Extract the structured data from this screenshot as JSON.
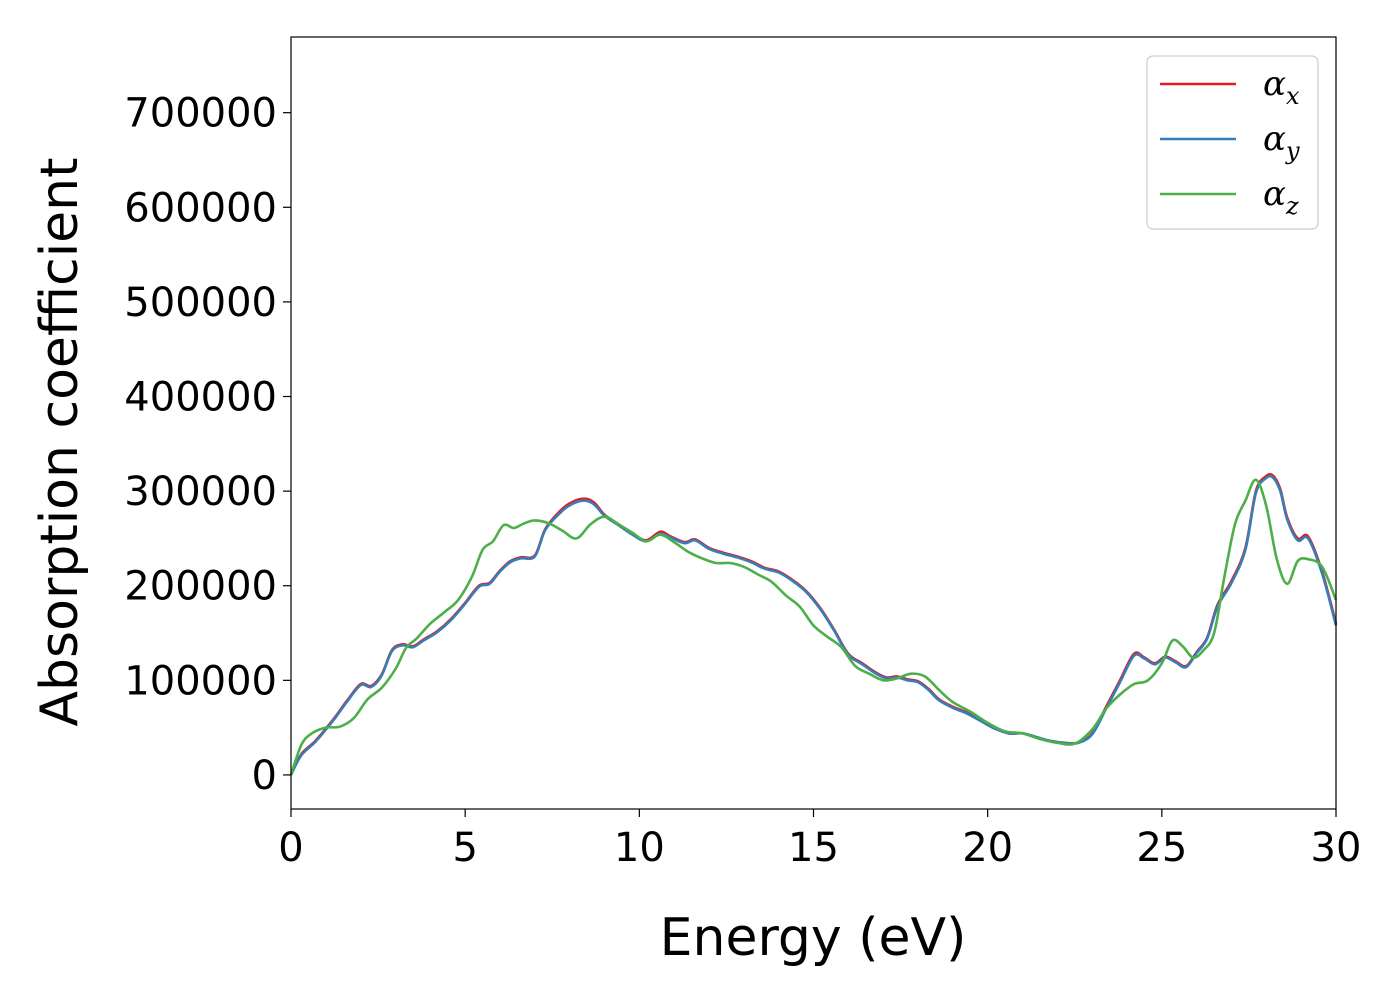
{
  "chart_data": {
    "type": "line",
    "title": "",
    "xlabel": "Energy (eV)",
    "ylabel": "Absorption coefficient",
    "xlim": [
      0,
      30
    ],
    "ylim": [
      -36000,
      780000
    ],
    "xticks": [
      0,
      5,
      10,
      15,
      20,
      25,
      30
    ],
    "yticks": [
      0,
      100000,
      200000,
      300000,
      400000,
      500000,
      600000,
      700000
    ],
    "grid": false,
    "legend_position": "top-right",
    "series": [
      {
        "name": "α_x",
        "legend_base": "α",
        "legend_sub": "x",
        "color": "#e41a1c",
        "x": [
          0,
          0.3,
          0.7,
          1.2,
          1.6,
          2.0,
          2.3,
          2.6,
          2.9,
          3.2,
          3.5,
          3.8,
          4.2,
          4.6,
          5.0,
          5.4,
          5.7,
          6.0,
          6.3,
          6.6,
          7.0,
          7.3,
          7.7,
          8.0,
          8.4,
          8.7,
          9.0,
          9.4,
          9.8,
          10.2,
          10.6,
          10.9,
          11.3,
          11.6,
          12.0,
          12.4,
          12.8,
          13.2,
          13.6,
          14.0,
          14.4,
          14.8,
          15.2,
          15.6,
          16.0,
          16.4,
          16.8,
          17.1,
          17.4,
          17.7,
          18.0,
          18.3,
          18.6,
          19.0,
          19.4,
          19.8,
          20.2,
          20.6,
          21.0,
          21.4,
          21.8,
          22.2,
          22.6,
          23.0,
          23.4,
          23.8,
          24.2,
          24.5,
          24.8,
          25.1,
          25.4,
          25.7,
          26.0,
          26.3,
          26.6,
          27.0,
          27.4,
          27.7,
          28.0,
          28.2,
          28.4,
          28.6,
          28.9,
          29.2,
          29.6,
          30.0
        ],
        "values": [
          0,
          22000,
          36000,
          58000,
          78000,
          96000,
          94000,
          106000,
          132000,
          138000,
          136000,
          143000,
          152000,
          165000,
          182000,
          200000,
          203000,
          216000,
          226000,
          230000,
          232000,
          260000,
          278000,
          287000,
          292000,
          288000,
          275000,
          265000,
          255000,
          248000,
          257000,
          252000,
          246000,
          249000,
          240000,
          235000,
          231000,
          226000,
          219000,
          215000,
          206000,
          194000,
          176000,
          153000,
          128000,
          118000,
          108000,
          103000,
          104000,
          101000,
          99000,
          91000,
          80000,
          72000,
          66000,
          58000,
          50000,
          44000,
          44000,
          40000,
          36000,
          34000,
          34000,
          44000,
          72000,
          100000,
          128000,
          124000,
          118000,
          125000,
          120000,
          115000,
          130000,
          145000,
          180000,
          205000,
          240000,
          300000,
          316000,
          316000,
          302000,
          272000,
          250000,
          252000,
          215000,
          160000
        ]
      },
      {
        "name": "α_y",
        "legend_base": "α",
        "legend_sub": "y",
        "color": "#377eb8",
        "x": [
          0,
          0.3,
          0.7,
          1.2,
          1.6,
          2.0,
          2.3,
          2.6,
          2.9,
          3.2,
          3.5,
          3.8,
          4.2,
          4.6,
          5.0,
          5.4,
          5.7,
          6.0,
          6.3,
          6.6,
          7.0,
          7.3,
          7.7,
          8.0,
          8.4,
          8.7,
          9.0,
          9.4,
          9.8,
          10.2,
          10.6,
          10.9,
          11.3,
          11.6,
          12.0,
          12.4,
          12.8,
          13.2,
          13.6,
          14.0,
          14.4,
          14.8,
          15.2,
          15.6,
          16.0,
          16.4,
          16.8,
          17.1,
          17.4,
          17.7,
          18.0,
          18.3,
          18.6,
          19.0,
          19.4,
          19.8,
          20.2,
          20.6,
          21.0,
          21.4,
          21.8,
          22.2,
          22.6,
          23.0,
          23.4,
          23.8,
          24.2,
          24.5,
          24.8,
          25.1,
          25.4,
          25.7,
          26.0,
          26.3,
          26.6,
          27.0,
          27.4,
          27.7,
          28.0,
          28.2,
          28.4,
          28.6,
          28.9,
          29.2,
          29.6,
          30.0
        ],
        "values": [
          0,
          21000,
          35000,
          57000,
          77000,
          95000,
          93000,
          105000,
          131000,
          137000,
          135000,
          142000,
          151000,
          164000,
          181000,
          199000,
          202000,
          215000,
          225000,
          229000,
          231000,
          259000,
          276000,
          285000,
          290000,
          286000,
          274000,
          264000,
          254000,
          247000,
          255000,
          251000,
          245000,
          248000,
          239000,
          234000,
          230000,
          225000,
          218000,
          214000,
          205000,
          193000,
          175000,
          152000,
          127000,
          117000,
          107000,
          102000,
          103000,
          100000,
          98000,
          90000,
          79000,
          71000,
          65000,
          57000,
          49000,
          44000,
          44000,
          40000,
          36000,
          34000,
          34000,
          43000,
          70000,
          98000,
          126000,
          123000,
          117000,
          124000,
          119000,
          114000,
          129000,
          144000,
          178000,
          203000,
          238000,
          298000,
          314000,
          314000,
          300000,
          270000,
          248000,
          250000,
          213000,
          158000
        ]
      },
      {
        "name": "α_z",
        "legend_base": "α",
        "legend_sub": "z",
        "color": "#4daf4a",
        "x": [
          0,
          0.3,
          0.6,
          1.0,
          1.4,
          1.8,
          2.2,
          2.6,
          3.0,
          3.3,
          3.6,
          4.0,
          4.4,
          4.8,
          5.2,
          5.5,
          5.8,
          6.1,
          6.4,
          6.7,
          7.0,
          7.4,
          7.8,
          8.2,
          8.6,
          9.0,
          9.4,
          9.8,
          10.2,
          10.6,
          11.0,
          11.4,
          11.8,
          12.2,
          12.6,
          13.0,
          13.4,
          13.8,
          14.2,
          14.6,
          15.0,
          15.4,
          15.8,
          16.2,
          16.6,
          17.0,
          17.4,
          17.8,
          18.2,
          18.6,
          19.0,
          19.5,
          20.0,
          20.5,
          21.0,
          21.5,
          22.0,
          22.5,
          23.0,
          23.4,
          23.8,
          24.2,
          24.6,
          25.0,
          25.3,
          25.6,
          25.9,
          26.2,
          26.5,
          26.8,
          27.1,
          27.4,
          27.7,
          28.0,
          28.3,
          28.6,
          28.9,
          29.2,
          29.6,
          30.0
        ],
        "values": [
          0,
          32000,
          44000,
          50000,
          51000,
          60000,
          80000,
          92000,
          112000,
          134000,
          144000,
          160000,
          172000,
          185000,
          210000,
          238000,
          247000,
          264000,
          261000,
          266000,
          269000,
          266000,
          258000,
          250000,
          265000,
          273000,
          265000,
          256000,
          247000,
          254000,
          246000,
          236000,
          229000,
          224000,
          224000,
          220000,
          212000,
          204000,
          190000,
          178000,
          158000,
          146000,
          135000,
          115000,
          107000,
          100000,
          102000,
          107000,
          104000,
          90000,
          77000,
          67000,
          55000,
          46000,
          44000,
          38000,
          34000,
          33000,
          48000,
          70000,
          85000,
          96000,
          100000,
          118000,
          142000,
          136000,
          124000,
          132000,
          150000,
          210000,
          265000,
          290000,
          312000,
          284000,
          228000,
          202000,
          226000,
          228000,
          220000,
          185000
        ]
      }
    ]
  }
}
